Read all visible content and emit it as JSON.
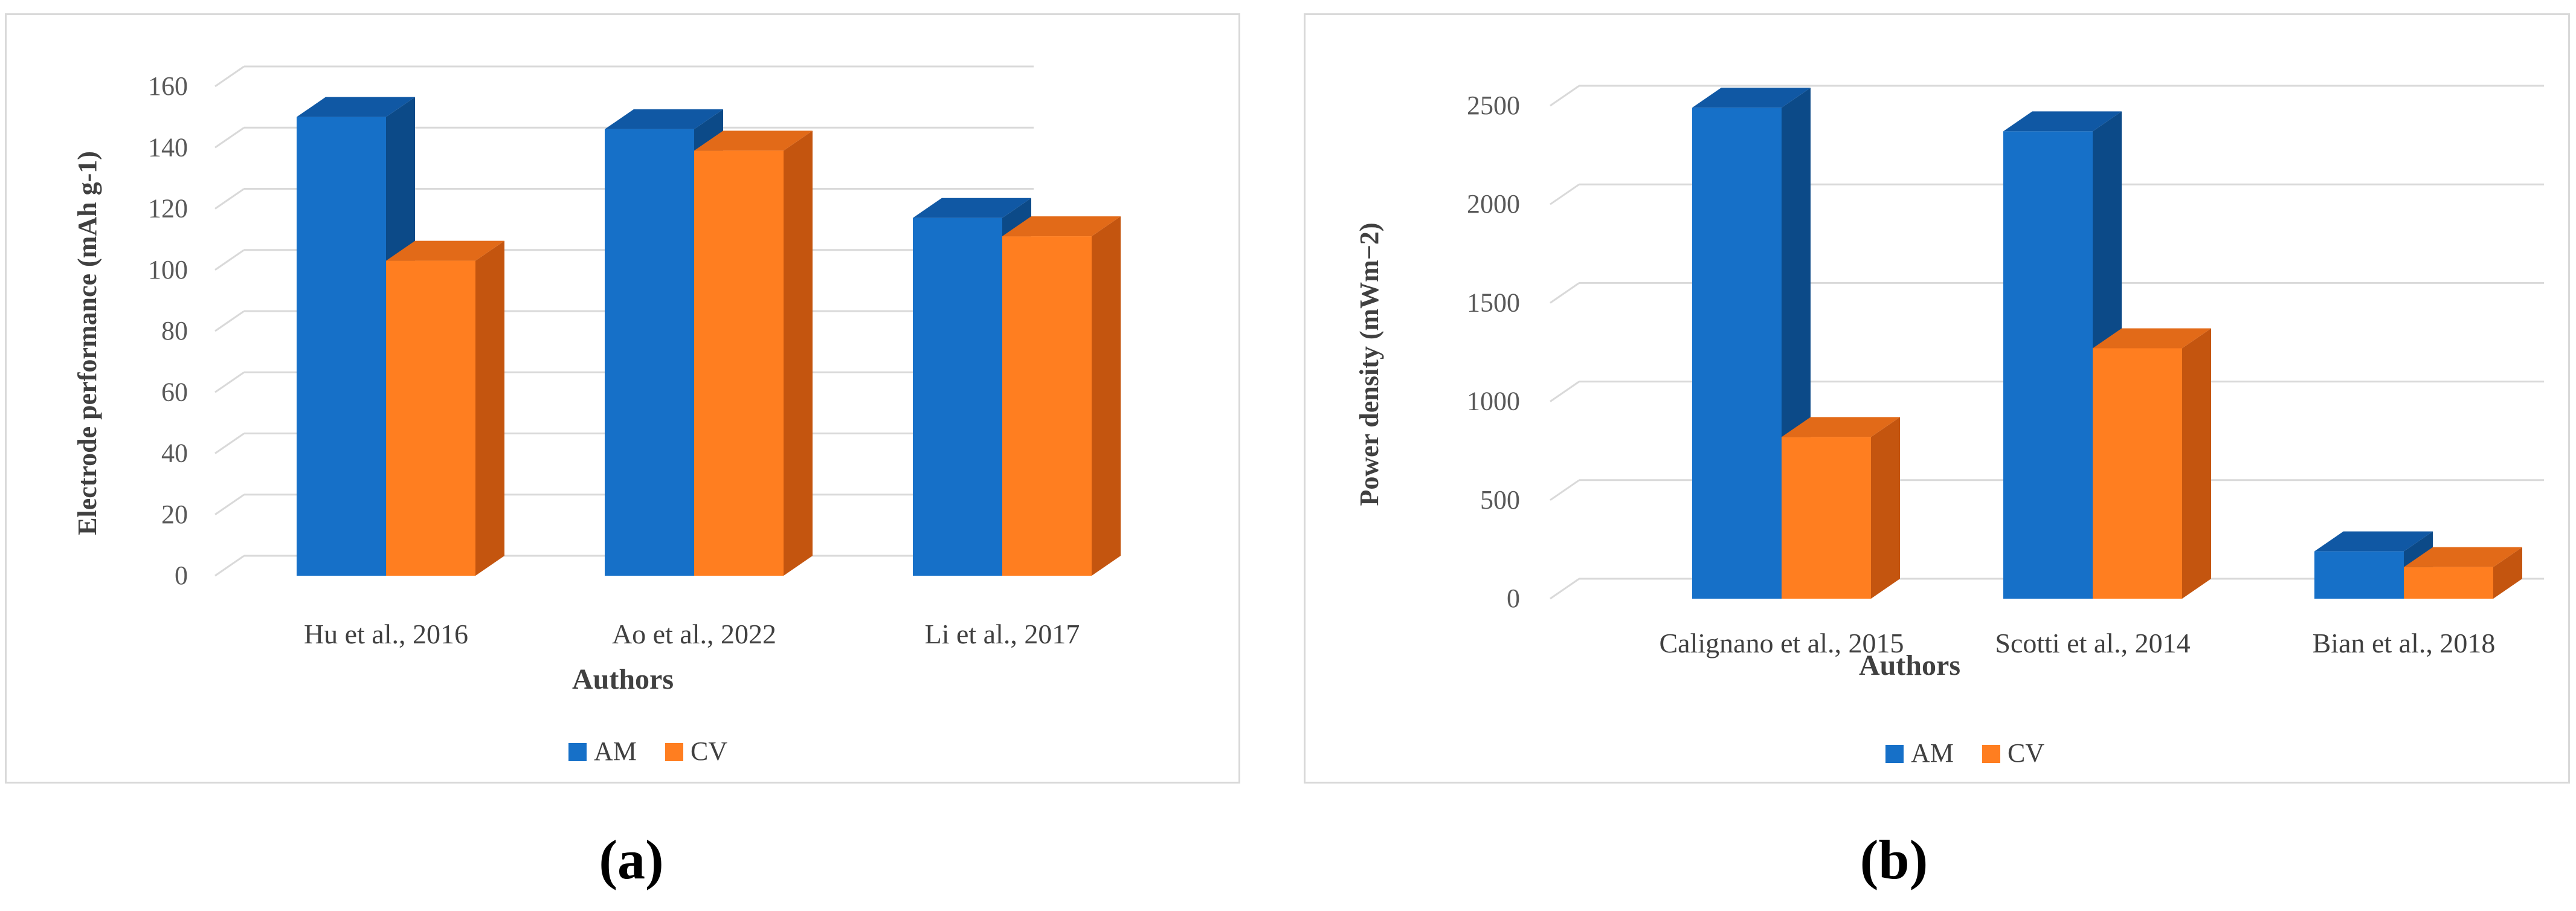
{
  "colors": {
    "am_front": "#1670c8",
    "am_side": "#0c4a88",
    "am_top": "#1058a4",
    "cv_front": "#ff7e20",
    "cv_side": "#c4550f",
    "cv_top": "#e26a18",
    "grid": "#d9d9d9",
    "tick_text": "#595959"
  },
  "chart_data": [
    {
      "type": "bar",
      "title": "",
      "xlabel": "Authors",
      "ylabel": "Electrode performance (mAh g-1)",
      "ylim": [
        0,
        160
      ],
      "yticks": [
        0,
        20,
        40,
        60,
        80,
        100,
        120,
        140,
        160
      ],
      "grid": true,
      "legend_position": "bottom",
      "categories": [
        "Hu et al., 2016",
        "Ao et al., 2022",
        "Li et al., 2017"
      ],
      "series": [
        {
          "name": "AM",
          "values": [
            150,
            146,
            117
          ]
        },
        {
          "name": "CV",
          "values": [
            103,
            139,
            111
          ]
        }
      ]
    },
    {
      "type": "bar",
      "title": "",
      "xlabel": "Authors",
      "ylabel": "Power density    (mWm−2)",
      "ylim": [
        0,
        2500
      ],
      "yticks": [
        0,
        500,
        1000,
        1500,
        2000,
        2500
      ],
      "grid": true,
      "legend_position": "bottom",
      "categories": [
        "Calignano et al., 2015",
        "Scotti et al., 2014",
        "Bian et al., 2018"
      ],
      "series": [
        {
          "name": "AM",
          "values": [
            2490,
            2370,
            240
          ]
        },
        {
          "name": "CV",
          "values": [
            820,
            1270,
            160
          ]
        }
      ]
    }
  ],
  "panel_labels": [
    "(a)",
    "(b)"
  ]
}
